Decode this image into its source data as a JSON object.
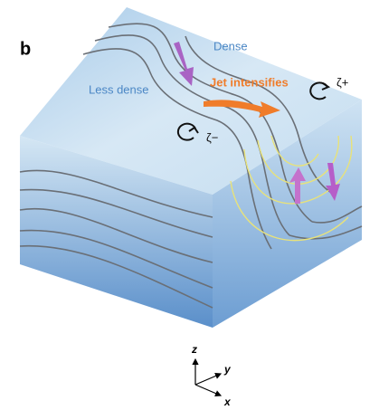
{
  "panel_label": "b",
  "labels": {
    "dense": "Dense",
    "less_dense": "Less dense",
    "jet": "Jet intensifies",
    "zeta_plus": "ζ+",
    "zeta_minus": "ζ−"
  },
  "axes": {
    "z": "z",
    "y": "y",
    "x": "x"
  }
}
